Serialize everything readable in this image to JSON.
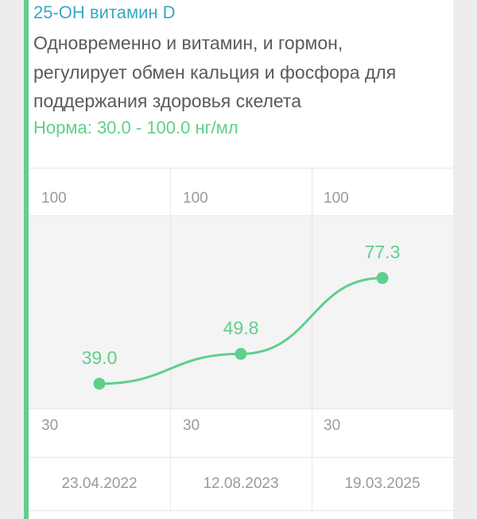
{
  "indicator": {
    "title": "25-OH витамин D",
    "description": "Одновременно и витамин, и гормон, регулирует обмен кальция и фосфора для поддержания здоровья скелета",
    "norm": "Норма: 30.0 - 100.0 нг/мл"
  },
  "colors": {
    "accent": "#5fcf8c",
    "title": "#3aa8c4",
    "text": "#5a5a5a"
  },
  "chart_data": {
    "type": "line",
    "x": [
      "23.04.2022",
      "12.08.2023",
      "19.03.2025"
    ],
    "series": [
      {
        "values": [
          39.0,
          49.8,
          77.3
        ]
      }
    ],
    "value_labels": [
      "39.0",
      "49.8",
      "77.3"
    ],
    "upper_labels": [
      "100",
      "100",
      "100"
    ],
    "lower_labels": [
      "30",
      "30",
      "30"
    ],
    "ylim": [
      30,
      100
    ],
    "grid": true
  }
}
